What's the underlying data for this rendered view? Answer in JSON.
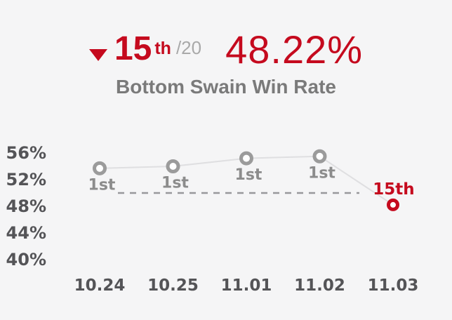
{
  "header": {
    "trend_icon": "down-triangle",
    "rank_value": "15",
    "rank_suffix": "th",
    "rank_total": "/20",
    "win_rate": "48.22%"
  },
  "title": "Bottom Swain Win Rate",
  "chart_data": {
    "type": "line",
    "title": "Bottom Swain Win Rate",
    "x": [
      "10.24",
      "10.25",
      "11.01",
      "11.02",
      "11.03"
    ],
    "series": [
      {
        "name": "win_rate_percent",
        "values": [
          53.7,
          54.0,
          55.2,
          55.5,
          48.22
        ]
      }
    ],
    "point_labels": [
      "1st",
      "1st",
      "1st",
      "1st",
      "15th"
    ],
    "highlight_index": 4,
    "yticks": [
      "56%",
      "52%",
      "48%",
      "44%",
      "40%"
    ],
    "ytick_values": [
      56,
      52,
      48,
      44,
      40
    ],
    "ref_line_value": 50,
    "xlabel": "",
    "ylabel": "",
    "grid": false,
    "legend": false,
    "ylim": [
      38,
      58
    ]
  },
  "colors": {
    "accent": "#c50a1e",
    "muted": "#a9a9a9",
    "title_gray": "#7a7a7a",
    "axis_label": "#545457",
    "point_label": "#8c8c8c",
    "trend_line": "#dfdfe1",
    "point_ring": "#9b9b9b",
    "point_fill": "#ffffff",
    "ref_dash": "#98989b",
    "background": "#f5f5f6"
  }
}
